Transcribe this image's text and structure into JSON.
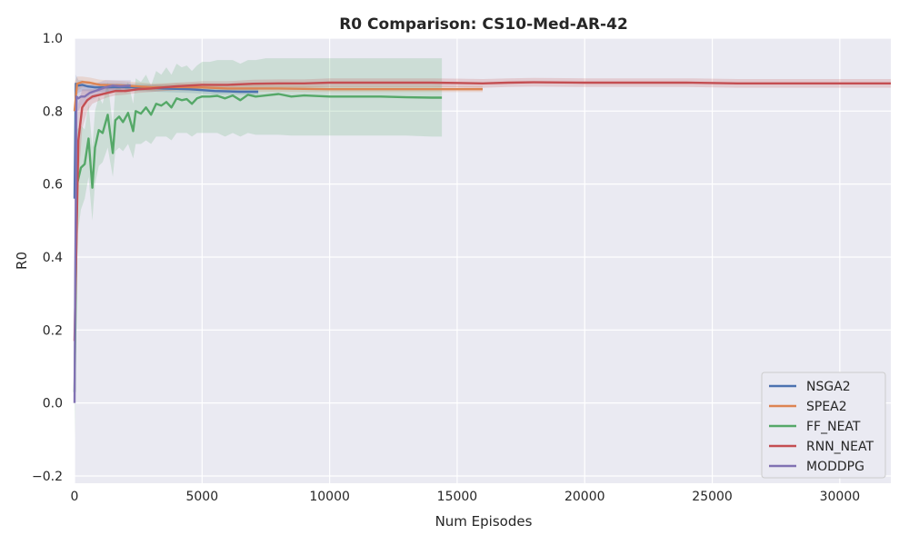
{
  "chart_data": {
    "type": "line",
    "title": "R0 Comparison: CS10-Med-AR-42",
    "xlabel": "Num Episodes",
    "ylabel": "R0",
    "xlim": [
      0,
      32000
    ],
    "ylim": [
      -0.22,
      1.0
    ],
    "xticks": [
      0,
      5000,
      10000,
      15000,
      20000,
      25000,
      30000
    ],
    "yticks": [
      -0.2,
      0.0,
      0.2,
      0.4,
      0.6,
      0.8,
      1.0
    ],
    "ytick_labels": [
      "−0.2",
      "0.0",
      "0.2",
      "0.4",
      "0.6",
      "0.8",
      "1.0"
    ],
    "grid": true,
    "legend_position": "lower-right",
    "background": "#eaeaf2",
    "series": [
      {
        "name": "NSGA2",
        "color": "#4c72b0",
        "x": [
          0,
          50,
          150,
          300,
          500,
          800,
          1200,
          1800,
          2500,
          3500,
          4500,
          5500,
          6500,
          7200
        ],
        "y": [
          0.56,
          0.875,
          0.87,
          0.872,
          0.868,
          0.865,
          0.865,
          0.866,
          0.865,
          0.862,
          0.86,
          0.855,
          0.853,
          0.853
        ],
        "lower": [
          0.46,
          0.84,
          0.85,
          0.855,
          0.855,
          0.853,
          0.853,
          0.855,
          0.855,
          0.852,
          0.85,
          0.846,
          0.845,
          0.845
        ],
        "upper": [
          0.66,
          0.9,
          0.885,
          0.885,
          0.88,
          0.877,
          0.877,
          0.877,
          0.875,
          0.872,
          0.87,
          0.864,
          0.862,
          0.862
        ]
      },
      {
        "name": "SPEA2",
        "color": "#dd8452",
        "x": [
          0,
          100,
          300,
          600,
          1000,
          2000,
          3000,
          4000,
          5000,
          6000,
          8000,
          10000,
          12000,
          14000,
          16000
        ],
        "y": [
          0.8,
          0.875,
          0.88,
          0.878,
          0.872,
          0.87,
          0.865,
          0.866,
          0.865,
          0.862,
          0.862,
          0.86,
          0.86,
          0.86,
          0.86
        ],
        "lower": [
          0.7,
          0.855,
          0.865,
          0.865,
          0.86,
          0.858,
          0.855,
          0.856,
          0.855,
          0.853,
          0.853,
          0.852,
          0.852,
          0.852,
          0.852
        ],
        "upper": [
          0.88,
          0.895,
          0.895,
          0.892,
          0.886,
          0.882,
          0.876,
          0.877,
          0.876,
          0.872,
          0.872,
          0.869,
          0.869,
          0.869,
          0.869
        ]
      },
      {
        "name": "FF_NEAT",
        "color": "#55a868",
        "x": [
          0,
          100,
          250,
          400,
          550,
          700,
          800,
          950,
          1100,
          1300,
          1500,
          1600,
          1750,
          1900,
          2100,
          2300,
          2400,
          2600,
          2800,
          3000,
          3200,
          3400,
          3600,
          3800,
          4000,
          4200,
          4400,
          4600,
          4800,
          5000,
          5300,
          5600,
          5900,
          6200,
          6500,
          6800,
          7100,
          7500,
          8000,
          8500,
          9000,
          10000,
          11000,
          12000,
          13000,
          14000,
          14400
        ],
        "y": [
          0.03,
          0.6,
          0.645,
          0.655,
          0.725,
          0.59,
          0.7,
          0.748,
          0.74,
          0.79,
          0.685,
          0.775,
          0.785,
          0.77,
          0.795,
          0.745,
          0.8,
          0.793,
          0.81,
          0.79,
          0.82,
          0.815,
          0.825,
          0.81,
          0.835,
          0.83,
          0.833,
          0.82,
          0.835,
          0.84,
          0.84,
          0.842,
          0.835,
          0.843,
          0.83,
          0.845,
          0.84,
          0.843,
          0.847,
          0.84,
          0.843,
          0.84,
          0.84,
          0.84,
          0.838,
          0.837,
          0.837
        ],
        "lower": [
          -0.1,
          0.45,
          0.53,
          0.56,
          0.62,
          0.5,
          0.6,
          0.65,
          0.66,
          0.7,
          0.62,
          0.69,
          0.7,
          0.69,
          0.71,
          0.67,
          0.71,
          0.71,
          0.72,
          0.71,
          0.73,
          0.73,
          0.73,
          0.72,
          0.74,
          0.74,
          0.74,
          0.73,
          0.74,
          0.74,
          0.74,
          0.74,
          0.73,
          0.74,
          0.73,
          0.74,
          0.735,
          0.735,
          0.735,
          0.733,
          0.733,
          0.733,
          0.733,
          0.733,
          0.733,
          0.73,
          0.73
        ],
        "upper": [
          0.2,
          0.75,
          0.76,
          0.75,
          0.82,
          0.7,
          0.8,
          0.84,
          0.82,
          0.88,
          0.76,
          0.86,
          0.87,
          0.85,
          0.88,
          0.82,
          0.89,
          0.88,
          0.9,
          0.87,
          0.91,
          0.9,
          0.92,
          0.9,
          0.93,
          0.92,
          0.925,
          0.91,
          0.925,
          0.935,
          0.935,
          0.94,
          0.94,
          0.94,
          0.93,
          0.94,
          0.94,
          0.945,
          0.945,
          0.945,
          0.945,
          0.945,
          0.945,
          0.945,
          0.945,
          0.945,
          0.945
        ]
      },
      {
        "name": "RNN_NEAT",
        "color": "#c44e52",
        "x": [
          0,
          150,
          300,
          500,
          700,
          1000,
          1300,
          1600,
          2000,
          2500,
          3000,
          3500,
          4000,
          4500,
          5000,
          6000,
          7000,
          8000,
          9000,
          10000,
          12000,
          14000,
          16000,
          17000,
          18000,
          20000,
          22000,
          24000,
          26000,
          28000,
          30000,
          32000
        ],
        "y": [
          0.17,
          0.72,
          0.81,
          0.83,
          0.84,
          0.845,
          0.85,
          0.855,
          0.855,
          0.86,
          0.862,
          0.865,
          0.868,
          0.87,
          0.872,
          0.872,
          0.875,
          0.876,
          0.876,
          0.878,
          0.878,
          0.878,
          0.876,
          0.878,
          0.879,
          0.878,
          0.878,
          0.878,
          0.876,
          0.876,
          0.876,
          0.876
        ],
        "lower": [
          0.05,
          0.6,
          0.75,
          0.8,
          0.82,
          0.83,
          0.838,
          0.843,
          0.845,
          0.85,
          0.852,
          0.855,
          0.858,
          0.86,
          0.862,
          0.862,
          0.864,
          0.865,
          0.865,
          0.866,
          0.866,
          0.866,
          0.864,
          0.866,
          0.867,
          0.866,
          0.866,
          0.866,
          0.864,
          0.864,
          0.864,
          0.864
        ],
        "upper": [
          0.3,
          0.82,
          0.86,
          0.86,
          0.86,
          0.86,
          0.862,
          0.867,
          0.866,
          0.87,
          0.872,
          0.875,
          0.878,
          0.88,
          0.882,
          0.882,
          0.886,
          0.887,
          0.887,
          0.89,
          0.89,
          0.89,
          0.888,
          0.89,
          0.891,
          0.89,
          0.89,
          0.89,
          0.888,
          0.888,
          0.888,
          0.888
        ]
      },
      {
        "name": "MODDPG",
        "color": "#8172b3",
        "x": [
          0,
          30,
          80,
          150,
          250,
          400,
          600,
          800,
          1000,
          1200,
          1500,
          1800,
          2200
        ],
        "y": [
          0.0,
          0.35,
          0.84,
          0.835,
          0.84,
          0.84,
          0.85,
          0.855,
          0.86,
          0.865,
          0.87,
          0.868,
          0.87
        ],
        "lower": [
          -0.02,
          0.2,
          0.8,
          0.8,
          0.815,
          0.82,
          0.83,
          0.835,
          0.845,
          0.85,
          0.855,
          0.855,
          0.855
        ],
        "upper": [
          0.05,
          0.5,
          0.88,
          0.87,
          0.87,
          0.87,
          0.87,
          0.875,
          0.88,
          0.885,
          0.885,
          0.885,
          0.885
        ]
      }
    ]
  }
}
